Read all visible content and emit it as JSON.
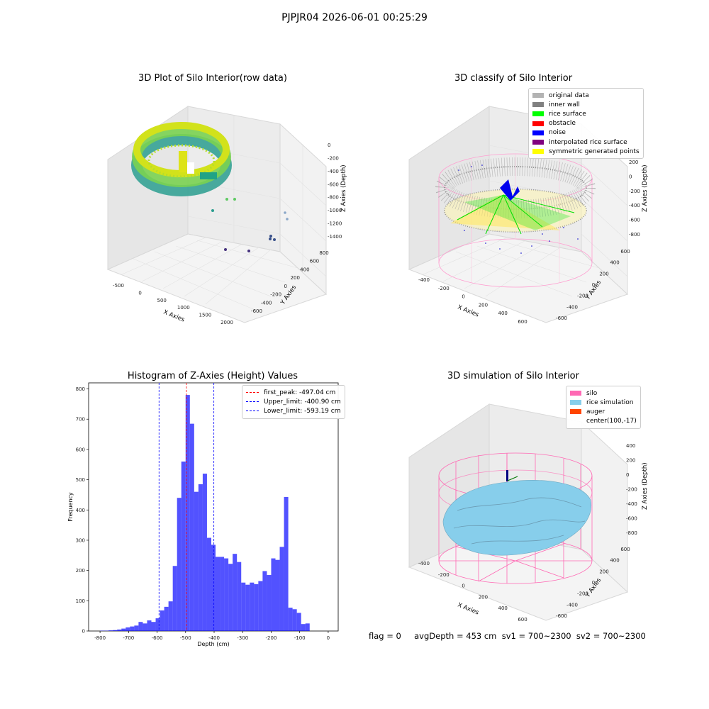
{
  "suptitle": "PJPJR04 2026-06-01 00:25:29",
  "panels": {
    "raw": {
      "title": "3D Plot of Silo Interior(row data)",
      "xlabel": "X Axies",
      "ylabel": "Y Axies",
      "zlabel": "Z Axies (Depth)",
      "xticks": [
        "-500",
        "0",
        "500",
        "1000",
        "1500",
        "2000"
      ],
      "yticks": [
        "-600",
        "-400",
        "-200",
        "0",
        "200",
        "400",
        "600",
        "800"
      ],
      "zticks": [
        "0",
        "-200",
        "-400",
        "-600",
        "-800",
        "-1000",
        "-1200",
        "-1400"
      ]
    },
    "classify": {
      "title": "3D classify of Silo Interior",
      "xlabel": "X Axies",
      "ylabel": "Y Axies",
      "zlabel": "Z Axies (Depth)",
      "xticks": [
        "-400",
        "-200",
        "0",
        "200",
        "400",
        "600"
      ],
      "yticks": [
        "-600",
        "-400",
        "-200",
        "0",
        "200",
        "400",
        "600"
      ],
      "zticks": [
        "200",
        "0",
        "-200",
        "-400",
        "-600",
        "-800"
      ],
      "legend": [
        {
          "label": "original data",
          "color": "#b3b3b3"
        },
        {
          "label": "inner wall",
          "color": "#808080"
        },
        {
          "label": "rice surface",
          "color": "#00ff00"
        },
        {
          "label": "obstacle",
          "color": "#ff0000"
        },
        {
          "label": "noise",
          "color": "#0000ff"
        },
        {
          "label": "interpolated rice surface",
          "color": "#800080"
        },
        {
          "label": "symmetric generated points",
          "color": "#ffff00"
        }
      ]
    },
    "simulation": {
      "title": "3D simulation of Silo Interior",
      "xlabel": "X Axies",
      "ylabel": "Y Axies",
      "zlabel": "Z Axies (Depth)",
      "xticks": [
        "-400",
        "-200",
        "0",
        "200",
        "400",
        "600"
      ],
      "yticks": [
        "-600",
        "-400",
        "-200",
        "0",
        "200",
        "400",
        "600"
      ],
      "zticks": [
        "400",
        "200",
        "0",
        "-200",
        "-400",
        "-600",
        "-800"
      ],
      "legend": [
        {
          "label": "silo",
          "color": "#ff69b4"
        },
        {
          "label": "rice simulation",
          "color": "#87ceeb"
        },
        {
          "label": "auger",
          "color": "#ff4500"
        },
        {
          "label": "center(100,-17)",
          "color": ""
        }
      ]
    }
  },
  "chart_data": [
    {
      "type": "bar",
      "title": "Histogram of Z-Axies (Height) Values",
      "xlabel": "Depth (cm)",
      "ylabel": "Frequency",
      "bar_color": "#0000ff",
      "bin_start": -800,
      "bin_width": 15,
      "values": [
        1,
        1,
        2,
        3,
        5,
        8,
        12,
        15,
        18,
        30,
        25,
        35,
        30,
        42,
        68,
        80,
        98,
        215,
        440,
        560,
        780,
        685,
        460,
        485,
        520,
        308,
        285,
        245,
        245,
        240,
        222,
        255,
        228,
        160,
        153,
        160,
        155,
        165,
        198,
        185,
        240,
        235,
        278,
        443,
        77,
        72,
        60,
        23,
        25
      ],
      "xlim": [
        -840,
        35
      ],
      "ylim": [
        0,
        820
      ],
      "xticks": [
        -800,
        -700,
        -600,
        -500,
        -400,
        -300,
        -200,
        -100,
        0
      ],
      "yticks": [
        0,
        100,
        200,
        300,
        400,
        500,
        600,
        700,
        800
      ],
      "vlines": [
        {
          "x": -497.04,
          "color": "#ff0000",
          "label": "first_peak: -497.04 cm"
        },
        {
          "x": -400.9,
          "color": "#0000ff",
          "label": "Upper_limit: -400.90 cm"
        },
        {
          "x": -593.19,
          "color": "#0000ff",
          "label": "Lower_limit: -593.19 cm"
        }
      ],
      "legend_position": "upper right"
    }
  ],
  "footer": {
    "text": "flag = 0     avgDepth = 453 cm  sv1 = 700~2300  sv2 = 700~2300"
  }
}
